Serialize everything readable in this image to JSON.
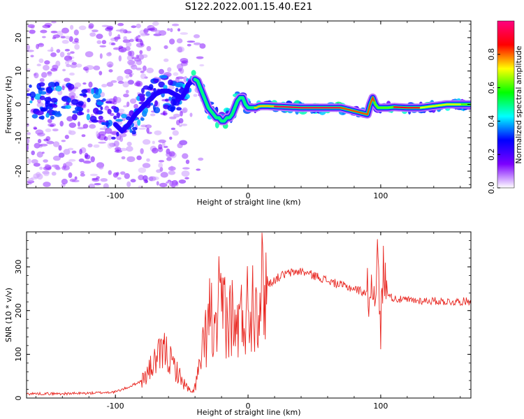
{
  "title": "S122.2022.001.15.40.E21",
  "chart_data": [
    {
      "type": "heatmap",
      "xlabel": "Height of straight line (km)",
      "ylabel": "Frequency (Hz)",
      "xlim": [
        -167,
        168
      ],
      "ylim": [
        -25,
        25
      ],
      "x_ticks": [
        -100,
        0,
        100
      ],
      "x_tick_labels": [
        "-100",
        "0",
        "100"
      ],
      "y_ticks": [
        -20,
        -10,
        0,
        10,
        20
      ],
      "y_tick_labels": [
        "-20",
        "-10",
        "0",
        "10",
        "20"
      ],
      "ridge": {
        "x": [
          -167,
          -150,
          -135,
          -120,
          -110,
          -100,
          -95,
          -90,
          -85,
          -80,
          -75,
          -70,
          -65,
          -60,
          -55,
          -50,
          -47,
          -45,
          -42,
          -40,
          -38,
          -36,
          -34,
          -32,
          -30,
          -28,
          -26,
          -24,
          -22,
          -20,
          -18,
          -16,
          -14,
          -12,
          -10,
          -8,
          -6,
          -4,
          -2,
          0,
          2,
          4,
          6,
          8,
          10,
          15,
          20,
          30,
          40,
          50,
          60,
          70,
          80,
          85,
          90,
          92,
          94,
          96,
          98,
          100,
          105,
          110,
          120,
          130,
          140,
          150,
          160,
          168
        ],
        "y": [
          1,
          1,
          1,
          0,
          -1,
          -6,
          -8,
          -6,
          -3,
          -1,
          1,
          3,
          4,
          4,
          3,
          2,
          4,
          6,
          7,
          7.5,
          7,
          5,
          3,
          1,
          -1,
          -2,
          -3,
          -4,
          -4,
          -5,
          -5,
          -4,
          -4,
          -3,
          -1,
          1,
          2,
          2,
          0,
          -1,
          -1,
          -1,
          -1,
          -0.6,
          -0.5,
          -0.5,
          -0.6,
          -0.8,
          -1,
          -1,
          -1,
          -1,
          -2,
          -2.5,
          -3,
          0,
          2,
          0,
          -1,
          -1,
          -1,
          -0.8,
          -1,
          -1,
          -0.5,
          0,
          0,
          0
        ]
      },
      "colorbar": {
        "label": "Normalized spectral amplitude",
        "range": [
          0,
          1
        ],
        "ticks": [
          0,
          0.2,
          0.4,
          0.6,
          0.8
        ],
        "tick_labels": [
          "0.0",
          "0.2",
          "0.4",
          "0.6",
          "0.8"
        ],
        "colormap": [
          "#ffffff",
          "#7c00ff",
          "#0000ff",
          "#00ffff",
          "#00ff00",
          "#ffff00",
          "#ff0000",
          "#ff0080"
        ]
      }
    },
    {
      "type": "line",
      "xlabel": "Height of straight line (km)",
      "ylabel": "SNR (10 * v/v)",
      "xlim": [
        -167,
        168
      ],
      "ylim": [
        0,
        380
      ],
      "x_ticks": [
        -100,
        0,
        100
      ],
      "x_tick_labels": [
        "-100",
        "0",
        "100"
      ],
      "y_ticks": [
        0,
        100,
        200,
        300
      ],
      "y_tick_labels": [
        "0",
        "100",
        "200",
        "300"
      ],
      "color": "#e8251f",
      "series": [
        {
          "x": [
            -167,
            -140,
            -120,
            -100,
            -90,
            -80,
            -75,
            -70,
            -65,
            -62,
            -60,
            -58,
            -55,
            -50,
            -45,
            -42,
            -38,
            -35,
            -32,
            -30,
            -28,
            -25,
            -22,
            -20,
            -18,
            -15,
            -12,
            -10,
            -8,
            -5,
            -2,
            0,
            5,
            10,
            15,
            20,
            25,
            30,
            35,
            40,
            45,
            50,
            55,
            60,
            70,
            80,
            85,
            90,
            94,
            96,
            98,
            99,
            100,
            101,
            102,
            104,
            108,
            115,
            125,
            140,
            155,
            168
          ],
          "y": [
            10,
            10,
            11,
            14,
            25,
            40,
            60,
            85,
            100,
            110,
            95,
            80,
            70,
            40,
            20,
            10,
            50,
            90,
            140,
            170,
            200,
            120,
            210,
            180,
            230,
            160,
            200,
            140,
            170,
            180,
            200,
            210,
            230,
            250,
            260,
            270,
            280,
            285,
            288,
            290,
            285,
            280,
            275,
            268,
            258,
            250,
            245,
            240,
            250,
            270,
            320,
            200,
            150,
            240,
            300,
            250,
            230,
            225,
            223,
            222,
            220,
            222
          ]
        }
      ]
    }
  ]
}
